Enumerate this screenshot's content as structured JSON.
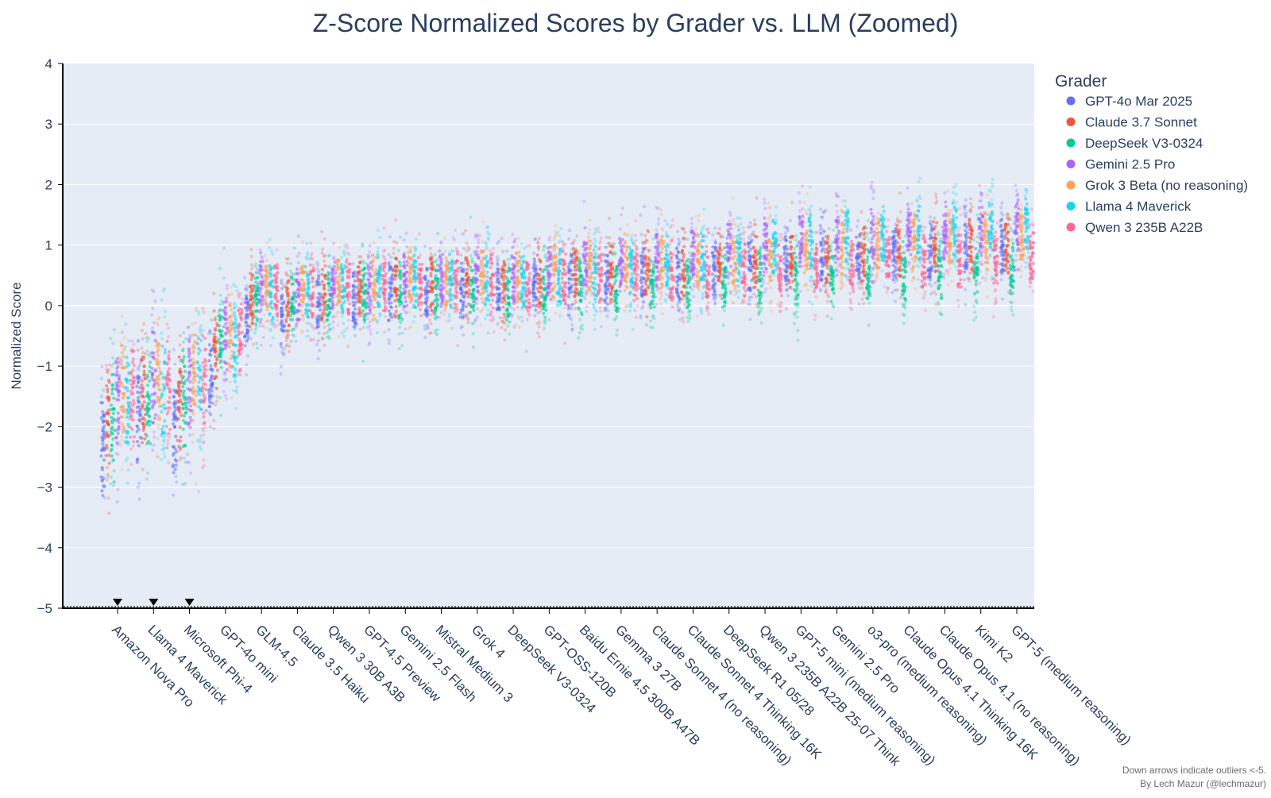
{
  "chart_data": {
    "type": "scatter",
    "title": "Z-Score Normalized Scores by Grader vs. LLM (Zoomed)",
    "xlabel": "",
    "ylabel": "Normalized Score",
    "ylim": [
      -5,
      4
    ],
    "y_ticks": [
      -5,
      -4,
      -3,
      -2,
      -1,
      0,
      1,
      2,
      3,
      4
    ],
    "y_tick_labels": [
      "−5",
      "−4",
      "−3",
      "−2",
      "−1",
      "0",
      "1",
      "2",
      "3",
      "4"
    ],
    "grid": true,
    "background": "#e5ecf6",
    "legend": {
      "title": "Grader",
      "position": "right"
    },
    "categories": [
      "Amazon Nova Pro",
      "Llama 4 Maverick",
      "Microsoft Phi-4",
      "GPT-4o mini",
      "GLM-4.5",
      "Claude 3.5 Haiku",
      "Qwen 3 30B A3B",
      "GPT-4.5 Preview",
      "Gemini 2.5 Flash",
      "Mistral Medium 3",
      "Grok 4",
      "DeepSeek V3-0324",
      "GPT-OSS-120B",
      "Baidu Ernie 4.5 300B A47B",
      "Gemma 3 27B",
      "Claude Sonnet 4 (no reasoning)",
      "Claude Sonnet 4 Thinking 16K",
      "DeepSeek R1 05/28",
      "Qwen 3 235B A22B 25-07 Think",
      "GPT-5 mini (medium reasoning)",
      "Gemini 2.5 Pro",
      "o3-pro (medium reasoning)",
      "Claude Opus 4.1 Thinking 16K",
      "Claude Opus 4.1 (no reasoning)",
      "Kimi K2",
      "GPT-5 (medium reasoning)"
    ],
    "series": [
      {
        "name": "GPT-4o Mar 2025",
        "color": "#636efa",
        "values": [
          -2.3,
          -1.9,
          -2.0,
          -1.1,
          -0.2,
          -0.2,
          0.05,
          0.1,
          0.2,
          0.2,
          0.25,
          0.25,
          0.35,
          0.4,
          0.45,
          0.5,
          0.5,
          0.6,
          0.65,
          0.75,
          0.8,
          0.85,
          0.85,
          0.9,
          0.95,
          1.0
        ]
      },
      {
        "name": "Claude 3.7 Sonnet",
        "color": "#ef553b",
        "values": [
          -1.9,
          -1.6,
          -1.6,
          -0.8,
          0.1,
          0.0,
          0.2,
          0.3,
          0.35,
          0.35,
          0.35,
          0.3,
          0.45,
          0.55,
          0.55,
          0.55,
          0.6,
          0.65,
          0.7,
          0.75,
          0.8,
          0.85,
          0.9,
          0.95,
          1.0,
          1.0
        ]
      },
      {
        "name": "DeepSeek V3-0324",
        "color": "#00cc96",
        "values": [
          -1.8,
          -1.6,
          -1.6,
          -0.7,
          0.1,
          0.05,
          0.15,
          0.2,
          0.2,
          0.25,
          0.25,
          0.2,
          0.3,
          0.3,
          0.3,
          0.35,
          0.4,
          0.4,
          0.45,
          0.45,
          0.5,
          0.5,
          0.5,
          0.55,
          0.55,
          0.6
        ]
      },
      {
        "name": "Gemini 2.5 Pro",
        "color": "#ab63fa",
        "values": [
          -1.5,
          -1.2,
          -1.3,
          -0.5,
          0.3,
          0.2,
          0.3,
          0.3,
          0.4,
          0.4,
          0.5,
          0.45,
          0.55,
          0.7,
          0.7,
          0.75,
          0.8,
          0.9,
          1.0,
          1.1,
          1.1,
          1.15,
          1.2,
          1.2,
          1.25,
          1.3
        ]
      },
      {
        "name": "Grok 3 Beta (no reasoning)",
        "color": "#ffa15a",
        "values": [
          -1.4,
          -1.2,
          -1.2,
          -0.5,
          0.3,
          0.25,
          0.35,
          0.4,
          0.45,
          0.45,
          0.5,
          0.45,
          0.55,
          0.65,
          0.65,
          0.7,
          0.75,
          0.8,
          0.85,
          0.9,
          0.95,
          1.0,
          1.05,
          1.1,
          1.1,
          1.15
        ]
      },
      {
        "name": "Llama 4 Maverick",
        "color": "#19d3f3",
        "values": [
          -1.6,
          -1.4,
          -1.3,
          -0.6,
          0.2,
          0.2,
          0.3,
          0.35,
          0.4,
          0.4,
          0.45,
          0.4,
          0.5,
          0.55,
          0.6,
          0.7,
          0.75,
          0.85,
          0.95,
          1.0,
          1.1,
          1.15,
          1.2,
          1.25,
          1.3,
          1.35
        ]
      },
      {
        "name": "Qwen 3 235B A22B",
        "color": "#ff6692",
        "values": [
          -1.5,
          -1.3,
          -1.2,
          -0.5,
          0.25,
          0.2,
          0.3,
          0.3,
          0.35,
          0.4,
          0.4,
          0.35,
          0.45,
          0.5,
          0.5,
          0.55,
          0.55,
          0.6,
          0.6,
          0.65,
          0.65,
          0.7,
          0.7,
          0.75,
          0.75,
          0.8
        ]
      }
    ],
    "outlier_markers": [
      "Amazon Nova Pro",
      "Llama 4 Maverick",
      "Microsoft Phi-4"
    ],
    "annotation_lines": [
      "Down arrows indicate outliers <-5.",
      "By Lech Mazur (@lechmazur)"
    ]
  }
}
